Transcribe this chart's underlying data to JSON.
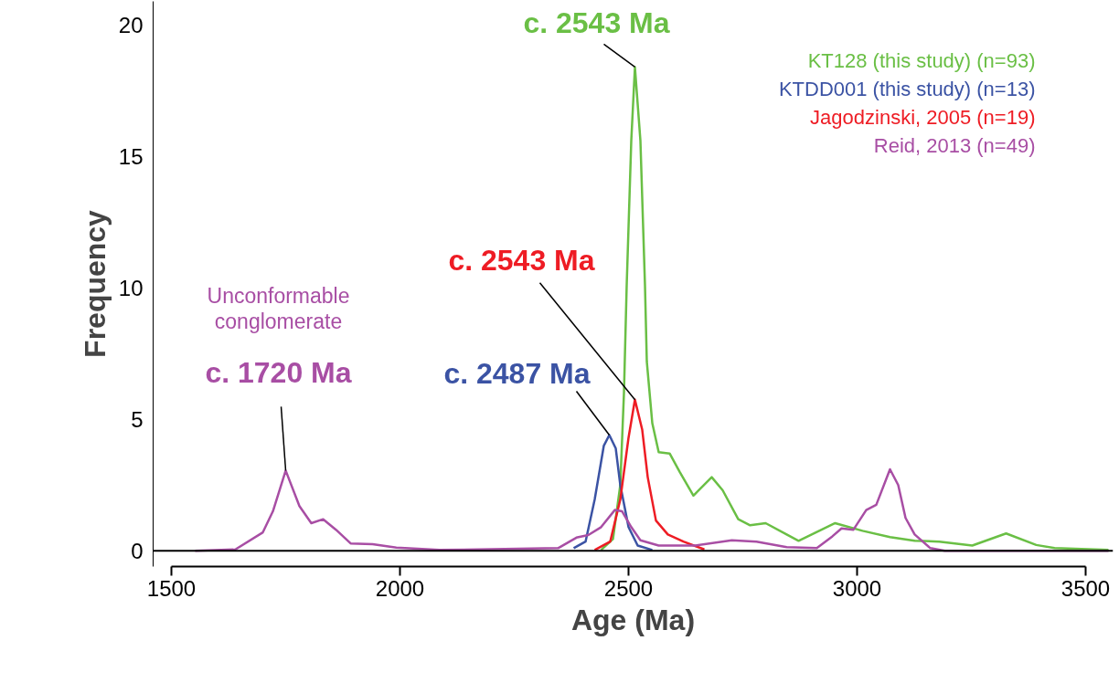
{
  "chart_data": {
    "type": "line",
    "xlabel": "Age (Ma)",
    "ylabel": "Frequency",
    "xlim": [
      1460,
      3560
    ],
    "ylim": [
      -0.6,
      20.9
    ],
    "xticks": [
      1500,
      2000,
      2500,
      3000,
      3500
    ],
    "yticks": [
      0,
      5,
      10,
      15,
      20
    ],
    "grid": false,
    "legend": "top right",
    "marker": "none",
    "line_style": "solid",
    "ref_lines": [
      {
        "axis": "y",
        "value": 0,
        "color": "#000000"
      }
    ],
    "series": [
      {
        "name": "KT128 (this study) (n=93)",
        "color": "#6abf45",
        "x": [
          2440,
          2466,
          2482,
          2490,
          2496,
          2506,
          2514,
          2526,
          2536,
          2540,
          2552,
          2566,
          2590,
          2612,
          2642,
          2682,
          2706,
          2740,
          2766,
          2800,
          2846,
          2872,
          2952,
          3012,
          3072,
          3126,
          3180,
          3252,
          3326,
          3392,
          3432,
          3550
        ],
        "values": [
          0.03,
          0.45,
          2.5,
          6.0,
          10.1,
          15.6,
          18.4,
          15.6,
          10.1,
          7.2,
          4.85,
          3.75,
          3.7,
          3.0,
          2.1,
          2.8,
          2.3,
          1.2,
          0.97,
          1.05,
          0.62,
          0.38,
          1.05,
          0.76,
          0.52,
          0.38,
          0.35,
          0.2,
          0.66,
          0.22,
          0.1,
          0.03
        ]
      },
      {
        "name": "KTDD001 (this study) (n=13)",
        "color": "#3b53a4",
        "x": [
          2380,
          2406,
          2426,
          2446,
          2458,
          2472,
          2482,
          2500,
          2520,
          2552
        ],
        "values": [
          0.1,
          0.35,
          1.95,
          4.0,
          4.4,
          3.9,
          2.5,
          0.9,
          0.2,
          0.03
        ]
      },
      {
        "name": "Jagodzinski, 2005 (n=19)",
        "color": "#ee1c24",
        "x": [
          2426,
          2460,
          2482,
          2500,
          2514,
          2530,
          2542,
          2560,
          2586,
          2620,
          2666
        ],
        "values": [
          0.03,
          0.35,
          1.95,
          4.3,
          5.75,
          4.6,
          2.8,
          1.15,
          0.62,
          0.35,
          0.05
        ]
      },
      {
        "name": "Reid, 2013 (n=49)",
        "color": "#a84ea4",
        "x": [
          1552,
          1640,
          1700,
          1722,
          1750,
          1780,
          1806,
          1832,
          1860,
          1892,
          1940,
          1992,
          2086,
          2346,
          2386,
          2412,
          2440,
          2470,
          2486,
          2506,
          2526,
          2566,
          2646,
          2726,
          2780,
          2846,
          2912,
          2946,
          2966,
          2992,
          3020,
          3042,
          3072,
          3090,
          3106,
          3126,
          3160,
          3192,
          3550
        ],
        "values": [
          0,
          0.05,
          0.7,
          1.5,
          3.05,
          1.7,
          1.05,
          1.2,
          0.8,
          0.28,
          0.25,
          0.12,
          0.03,
          0.1,
          0.5,
          0.6,
          0.9,
          1.55,
          1.5,
          0.9,
          0.4,
          0.2,
          0.2,
          0.4,
          0.35,
          0.14,
          0.1,
          0.55,
          0.85,
          0.8,
          1.55,
          1.75,
          3.1,
          2.5,
          1.25,
          0.62,
          0.1,
          0,
          0
        ]
      }
    ],
    "annotations": [
      {
        "text": "c. 2543 Ma",
        "x": 2514,
        "y": 18.4
      },
      {
        "text": "c. 2543 Ma",
        "x": 2514,
        "y": 5.75
      },
      {
        "text": "c. 2487 Ma",
        "x": 2458,
        "y": 4.4
      },
      {
        "text": "c. 1720 Ma",
        "x": 1750,
        "y": 3.05
      },
      "Unconformable conglomerate"
    ]
  }
}
